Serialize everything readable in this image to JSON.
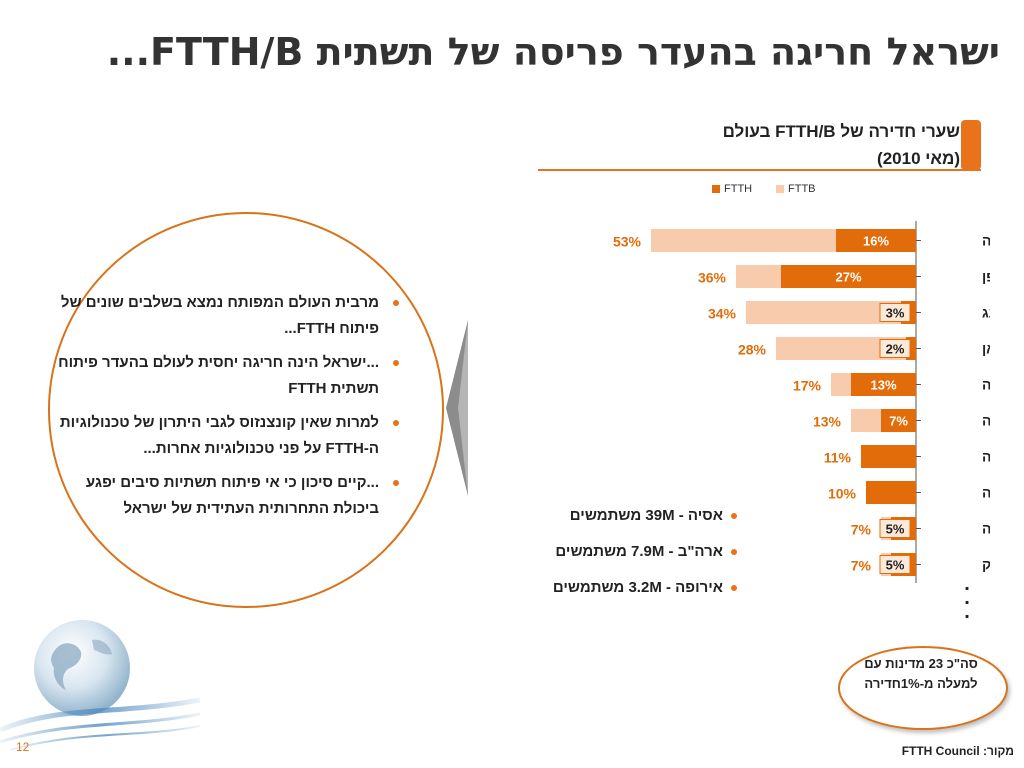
{
  "slide": {
    "title": "ישראל חריגה בהעדר פריסה של תשתית FTTH/B...",
    "page_number": "12",
    "source": "מקור: FTTH Council"
  },
  "colors": {
    "accent": "#e8731a",
    "ftth": "#e36c0a",
    "fttb": "#f8cbad",
    "text": "#222222"
  },
  "chart_header": {
    "line1": "שערי חדירה של FTTH/B בעולם",
    "line2": "(מאי 2010)"
  },
  "chart_data": {
    "type": "bar",
    "orientation": "horizontal",
    "stacked": true,
    "legend_position": "top",
    "categories": [
      "קוריאה",
      "יפן",
      "הונג קונג",
      "טייוואן",
      "לטביה",
      "שבדיה",
      "נורבגיה",
      "סלובניה",
      "ב\"ארה",
      "דנמרק"
    ],
    "series": [
      {
        "name": "FTTH",
        "color": "#e36c0a",
        "values": [
          16,
          27,
          3,
          2,
          13,
          7,
          11,
          10,
          5,
          5
        ]
      },
      {
        "name": "FTTB",
        "color": "#f8cbad",
        "values": [
          37,
          9,
          31,
          26,
          4,
          6,
          0,
          0,
          2,
          2
        ]
      }
    ],
    "inner_labels": [
      "16%",
      "27%",
      "3%",
      "2%",
      "13%",
      "7%",
      "",
      "",
      "5%",
      "5%"
    ],
    "total_labels": [
      "53%",
      "36%",
      "34%",
      "28%",
      "17%",
      "13%",
      "11%",
      "10%",
      "7%",
      "7%"
    ],
    "xlim": [
      0,
      60
    ],
    "grid": false
  },
  "bullets": [
    "מרבית העולם המפותח נמצא בשלבים שונים של פיתוח FTTH...",
    "...ישראל הינה חריגה יחסית לעולם בהעדר פיתוח תשתית FTTH",
    "למרות שאין קונצנזוס לגבי היתרון של טכנולוגיות ה-FTTH על פני טכנולוגיות אחרות...",
    "...קיים סיכון כי אי פיתוח תשתיות סיבים יפגע ביכולת התחרותית העתידית של ישראל"
  ],
  "regions": [
    "אסיה - 39M משתמשים",
    "ארה\"ב - 7.9M משתמשים",
    "אירופה - 3.2M משתמשים"
  ],
  "summary_oval": "סה\"כ 23 מדינות עם למעלה מ-1%חדירה",
  "more_dots": "..."
}
